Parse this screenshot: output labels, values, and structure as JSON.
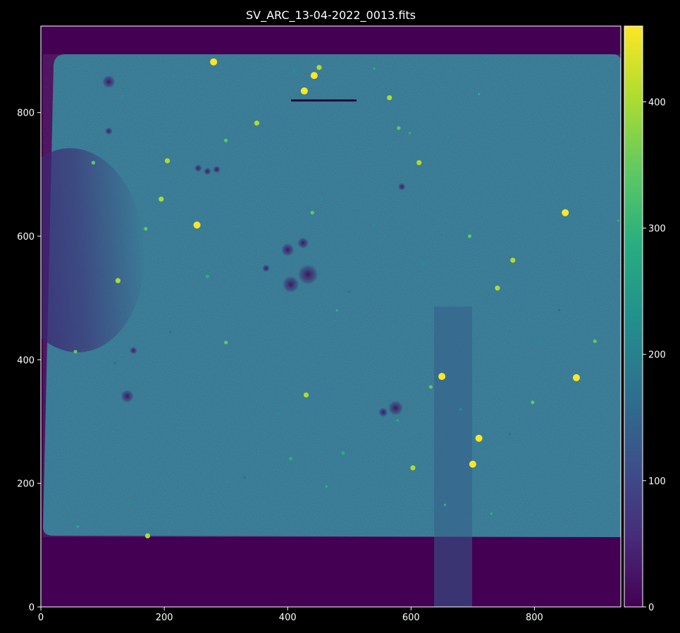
{
  "title": "SV_ARC_13-04-2022_0013.fits",
  "image": {
    "xlim": [
      0,
      940
    ],
    "ylim": [
      0,
      940
    ],
    "cmap": "viridis",
    "vmin": 0,
    "vmax": 460
  },
  "x_axis": {
    "ticks": [
      0,
      200,
      400,
      600,
      800
    ],
    "labels": [
      "0",
      "200",
      "400",
      "600",
      "800"
    ]
  },
  "y_axis": {
    "ticks": [
      0,
      200,
      400,
      600,
      800
    ],
    "labels": [
      "0",
      "200",
      "400",
      "600",
      "800"
    ]
  },
  "colorbar": {
    "ticks": [
      0,
      100,
      200,
      300,
      400
    ],
    "labels": [
      "0",
      "100",
      "200",
      "300",
      "400"
    ]
  },
  "colors": {
    "background": "#000000",
    "axis": "#ffffff",
    "sky": "#440154",
    "frame": "#2c718e"
  },
  "stars": [
    {
      "x": 280,
      "y": 882,
      "v": 460
    },
    {
      "x": 427,
      "y": 835,
      "v": 460
    },
    {
      "x": 443,
      "y": 860,
      "v": 460
    },
    {
      "x": 451,
      "y": 873,
      "v": 400
    },
    {
      "x": 650,
      "y": 373,
      "v": 460
    },
    {
      "x": 868,
      "y": 371,
      "v": 460
    },
    {
      "x": 710,
      "y": 273,
      "v": 460
    },
    {
      "x": 700,
      "y": 231,
      "v": 460
    },
    {
      "x": 850,
      "y": 638,
      "v": 440
    },
    {
      "x": 253,
      "y": 618,
      "v": 440
    },
    {
      "x": 613,
      "y": 719,
      "v": 420
    },
    {
      "x": 205,
      "y": 722,
      "v": 420
    },
    {
      "x": 195,
      "y": 660,
      "v": 400
    },
    {
      "x": 125,
      "y": 528,
      "v": 420
    },
    {
      "x": 173,
      "y": 115,
      "v": 420
    },
    {
      "x": 430,
      "y": 343,
      "v": 400
    },
    {
      "x": 765,
      "y": 561,
      "v": 400
    },
    {
      "x": 740,
      "y": 516,
      "v": 380
    },
    {
      "x": 565,
      "y": 824,
      "v": 380
    },
    {
      "x": 350,
      "y": 783,
      "v": 380
    },
    {
      "x": 580,
      "y": 775,
      "v": 360
    },
    {
      "x": 603,
      "y": 225,
      "v": 380
    },
    {
      "x": 797,
      "y": 331,
      "v": 360
    },
    {
      "x": 56,
      "y": 413,
      "v": 360
    },
    {
      "x": 440,
      "y": 638,
      "v": 360
    },
    {
      "x": 300,
      "y": 755,
      "v": 340
    },
    {
      "x": 85,
      "y": 719,
      "v": 340
    },
    {
      "x": 695,
      "y": 600,
      "v": 340
    },
    {
      "x": 632,
      "y": 356,
      "v": 340
    },
    {
      "x": 898,
      "y": 430,
      "v": 340
    },
    {
      "x": 300,
      "y": 428,
      "v": 320
    },
    {
      "x": 170,
      "y": 612,
      "v": 320
    },
    {
      "x": 270,
      "y": 535,
      "v": 300
    },
    {
      "x": 490,
      "y": 249,
      "v": 300
    },
    {
      "x": 405,
      "y": 240,
      "v": 300
    },
    {
      "x": 655,
      "y": 165,
      "v": 280
    },
    {
      "x": 730,
      "y": 151,
      "v": 280
    },
    {
      "x": 480,
      "y": 480,
      "v": 280
    },
    {
      "x": 710,
      "y": 830,
      "v": 280
    },
    {
      "x": 540,
      "y": 871,
      "v": 280
    },
    {
      "x": 598,
      "y": 767,
      "v": 260
    },
    {
      "x": 463,
      "y": 195,
      "v": 260
    },
    {
      "x": 60,
      "y": 130,
      "v": 260
    },
    {
      "x": 143,
      "y": 167,
      "v": 240
    },
    {
      "x": 578,
      "y": 302,
      "v": 260
    },
    {
      "x": 720,
      "y": 880,
      "v": 240
    },
    {
      "x": 795,
      "y": 150,
      "v": 240
    },
    {
      "x": 936,
      "y": 625,
      "v": 260
    },
    {
      "x": 808,
      "y": 430,
      "v": 240
    },
    {
      "x": 680,
      "y": 320,
      "v": 240
    },
    {
      "x": 410,
      "y": 867,
      "v": 240
    },
    {
      "x": 132,
      "y": 827,
      "v": 240
    },
    {
      "x": 455,
      "y": 660,
      "v": 220
    },
    {
      "x": 848,
      "y": 762,
      "v": 220
    },
    {
      "x": 300,
      "y": 400,
      "v": 220
    },
    {
      "x": 384,
      "y": 313,
      "v": 220
    },
    {
      "x": 455,
      "y": 250,
      "v": 220
    },
    {
      "x": 540,
      "y": 618,
      "v": 220
    },
    {
      "x": 620,
      "y": 555,
      "v": 220
    },
    {
      "x": 660,
      "y": 760,
      "v": 220
    },
    {
      "x": 210,
      "y": 445,
      "v": 200
    },
    {
      "x": 760,
      "y": 280,
      "v": 200
    },
    {
      "x": 840,
      "y": 480,
      "v": 200
    },
    {
      "x": 120,
      "y": 395,
      "v": 200
    },
    {
      "x": 500,
      "y": 510,
      "v": 200
    },
    {
      "x": 330,
      "y": 210,
      "v": 200
    }
  ],
  "dark_spots": [
    {
      "x": 433,
      "y": 538,
      "r": 11
    },
    {
      "x": 405,
      "y": 522,
      "r": 9
    },
    {
      "x": 400,
      "y": 578,
      "r": 7
    },
    {
      "x": 425,
      "y": 589,
      "r": 6
    },
    {
      "x": 140,
      "y": 341,
      "r": 7
    },
    {
      "x": 575,
      "y": 322,
      "r": 8
    },
    {
      "x": 555,
      "y": 315,
      "r": 5
    },
    {
      "x": 110,
      "y": 850,
      "r": 7
    },
    {
      "x": 255,
      "y": 710,
      "r": 4
    },
    {
      "x": 285,
      "y": 708,
      "r": 4
    },
    {
      "x": 270,
      "y": 705,
      "r": 4
    },
    {
      "x": 110,
      "y": 770,
      "r": 4
    },
    {
      "x": 585,
      "y": 680,
      "r": 4
    },
    {
      "x": 150,
      "y": 415,
      "r": 4
    },
    {
      "x": 365,
      "y": 548,
      "r": 4
    }
  ]
}
